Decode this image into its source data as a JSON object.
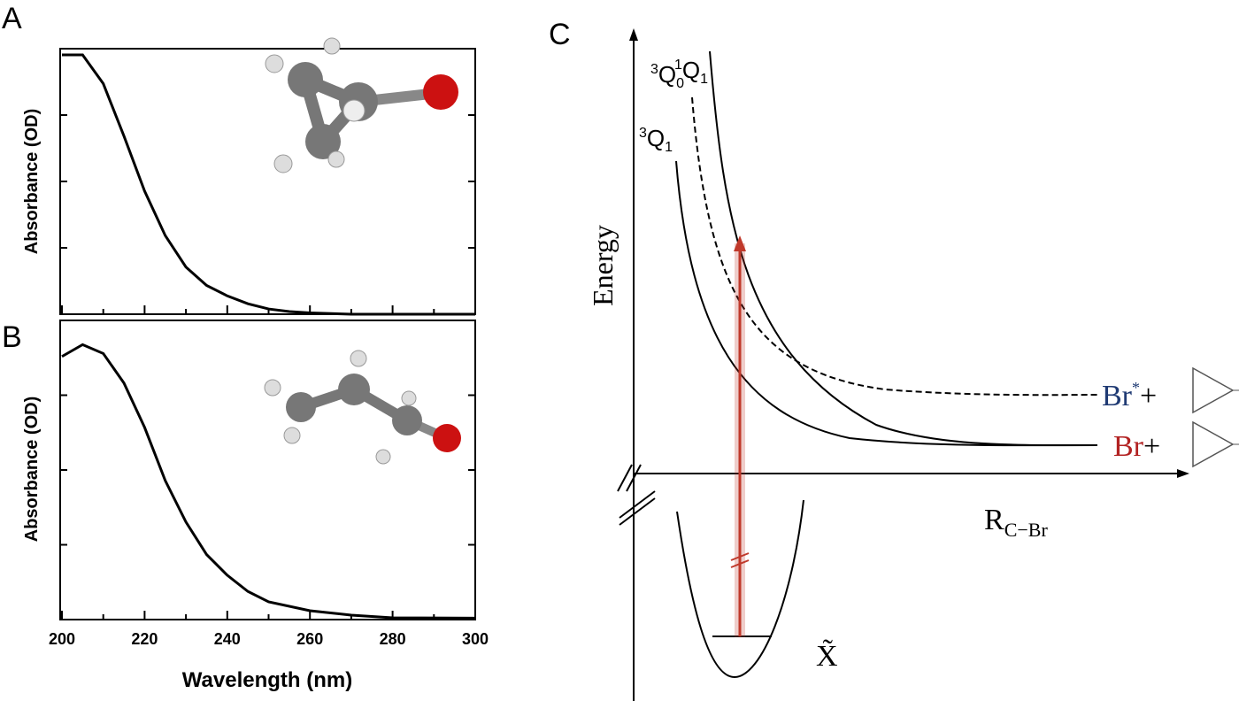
{
  "panels": {
    "a": "A",
    "b": "B",
    "c": "C"
  },
  "chart_data": [
    {
      "type": "line",
      "panel": "A",
      "xlabel": "",
      "ylabel": "Absorbance (OD)",
      "xlim": [
        200,
        300
      ],
      "ylim": [
        0,
        1
      ],
      "x": [
        200,
        205,
        210,
        215,
        220,
        225,
        230,
        235,
        240,
        245,
        250,
        255,
        260,
        270,
        300
      ],
      "values": [
        0.99,
        0.99,
        0.88,
        0.68,
        0.47,
        0.3,
        0.18,
        0.11,
        0.07,
        0.04,
        0.02,
        0.01,
        0.005,
        0.0,
        0.0
      ]
    },
    {
      "type": "line",
      "panel": "B",
      "xlabel": "Wavelength (nm)",
      "ylabel": "Absorbance (OD)",
      "xlim": [
        200,
        300
      ],
      "ylim": [
        0,
        1
      ],
      "xticks": [
        "200",
        "220",
        "240",
        "260",
        "280",
        "300"
      ],
      "x": [
        200,
        205,
        210,
        215,
        220,
        225,
        230,
        235,
        240,
        245,
        250,
        260,
        270,
        280,
        300
      ],
      "values": [
        0.89,
        0.93,
        0.9,
        0.8,
        0.65,
        0.47,
        0.33,
        0.22,
        0.15,
        0.095,
        0.06,
        0.03,
        0.015,
        0.006,
        0.005
      ]
    }
  ],
  "diagram": {
    "ylabel": "Energy",
    "xlabel_main": "R",
    "xlabel_sub": "C−Br",
    "states": [
      {
        "sup": "1",
        "main": "Q",
        "sub": "1"
      },
      {
        "sup": "3",
        "main": "Q",
        "sub": "0"
      },
      {
        "sup": "3",
        "main": "Q",
        "sub": "1"
      }
    ],
    "ground": "X̃",
    "product_excited": {
      "atom": "Br",
      "sup": "*",
      "plus": "+",
      "color": "#1f3a73"
    },
    "product_ground": {
      "atom": "Br",
      "plus": "+",
      "color": "#b22222"
    },
    "arrow_color": "#c0392b"
  }
}
